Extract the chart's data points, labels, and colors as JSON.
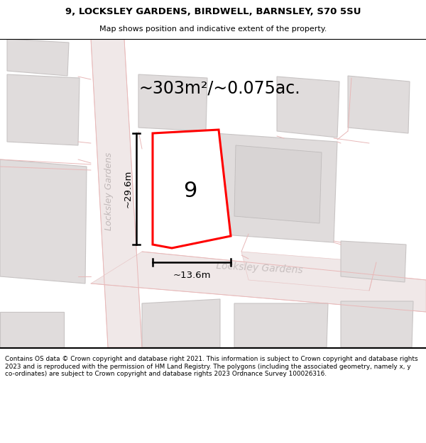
{
  "title_line1": "9, LOCKSLEY GARDENS, BIRDWELL, BARNSLEY, S70 5SU",
  "title_line2": "Map shows position and indicative extent of the property.",
  "area_label": "~303m²/~0.075ac.",
  "width_label": "~13.6m",
  "height_label": "~29.6m",
  "plot_number": "9",
  "footer_text": "Contains OS data © Crown copyright and database right 2021. This information is subject to Crown copyright and database rights 2023 and is reproduced with the permission of HM Land Registry. The polygons (including the associated geometry, namely x, y co-ordinates) are subject to Crown copyright and database rights 2023 Ordnance Survey 100026316.",
  "bg_color": "#f2eeec",
  "road_fill": "#f0e8e8",
  "road_edge": "#e8c8c8",
  "building_fill": "#e0dcdc",
  "building_edge": "#c8c4c4",
  "plot_fill": "#ffffff",
  "plot_edge": "#ff0000",
  "road_line_color": "#e8b8b8",
  "street_color": "#c0b8b8",
  "dim_color": "#000000"
}
